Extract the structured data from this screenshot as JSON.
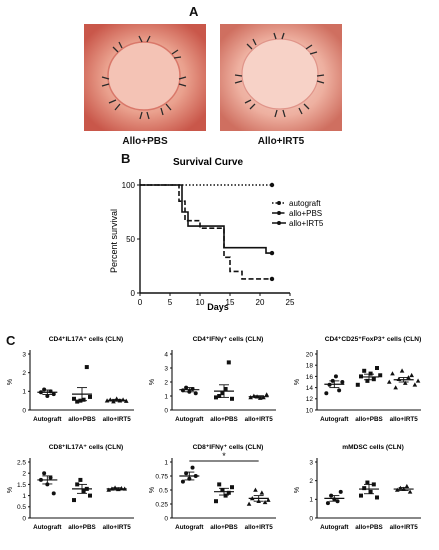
{
  "panel_letters": {
    "a": "A",
    "b": "B",
    "c": "C"
  },
  "photos": [
    {
      "caption": "Allo+PBS"
    },
    {
      "caption": "Allo+IRT5"
    }
  ],
  "chart_data": [
    {
      "type": "line",
      "title": "Survival Curve",
      "xlabel": "Days",
      "ylabel": "Percent survival",
      "xlim": [
        0,
        25
      ],
      "ylim": [
        0,
        100
      ],
      "xticks": [
        0,
        5,
        10,
        15,
        20,
        25
      ],
      "yticks": [
        0,
        50,
        100
      ],
      "legend_position": "right",
      "series": [
        {
          "name": "autograft",
          "style": "dotted",
          "x": [
            0,
            22
          ],
          "y": [
            100,
            100
          ],
          "end_marker": true
        },
        {
          "name": "allo+PBS",
          "style": "dashed",
          "x": [
            0,
            6.5,
            6.5,
            7.5,
            7.5,
            10,
            10,
            14,
            14,
            15,
            15,
            17,
            17,
            22
          ],
          "y": [
            100,
            100,
            85,
            85,
            67,
            67,
            60,
            60,
            33,
            33,
            20,
            20,
            13,
            13
          ],
          "end_marker": true
        },
        {
          "name": "allo+IRT5",
          "style": "solid",
          "x": [
            0,
            7,
            7,
            8,
            8,
            14,
            14,
            21,
            21,
            22
          ],
          "y": [
            100,
            100,
            75,
            75,
            62,
            62,
            42,
            42,
            37,
            37
          ],
          "end_marker": true
        }
      ]
    },
    {
      "type": "scatter",
      "title": "CD4⁺IL17A⁺ cells (CLN)",
      "ylabel": "%",
      "ylim": [
        0,
        3
      ],
      "yticks": [
        0,
        1,
        2,
        3
      ],
      "categories": [
        "Autograft",
        "allo+PBS",
        "allo+IRT5"
      ],
      "points": [
        [
          0.95,
          1.1,
          0.75,
          1.0,
          0.85
        ],
        [
          0.6,
          0.45,
          0.5,
          0.55,
          2.3,
          0.7
        ],
        [
          0.5,
          0.55,
          0.45,
          0.6,
          0.5,
          0.55,
          0.48
        ]
      ],
      "mean": [
        0.95,
        0.85,
        0.52
      ],
      "sem": [
        0.12,
        0.35,
        0.05
      ]
    },
    {
      "type": "scatter",
      "title": "CD4⁺IFNγ⁺ cells (CLN)",
      "ylabel": "%",
      "ylim": [
        0,
        4
      ],
      "yticks": [
        0,
        1,
        2,
        3,
        4
      ],
      "categories": [
        "Autograft",
        "allo+PBS",
        "allo+IRT5"
      ],
      "points": [
        [
          1.4,
          1.6,
          1.3,
          1.5,
          1.2
        ],
        [
          0.9,
          1.0,
          1.2,
          1.5,
          3.4,
          0.8
        ],
        [
          0.9,
          1.0,
          0.95,
          0.85,
          0.9,
          1.1
        ]
      ],
      "mean": [
        1.45,
        1.35,
        0.95
      ],
      "sem": [
        0.15,
        0.45,
        0.07
      ]
    },
    {
      "type": "scatter",
      "title": "CD4⁺CD25⁺FoxP3⁺ cells (CLN)",
      "ylabel": "%",
      "ylim": [
        10,
        20
      ],
      "yticks": [
        10,
        12,
        14,
        16,
        18,
        20
      ],
      "categories": [
        "Autograft",
        "allo+PBS",
        "allo+IRT5"
      ],
      "points": [
        [
          13.0,
          14.5,
          15.2,
          16.0,
          13.5,
          15.0
        ],
        [
          14.5,
          16.0,
          17.0,
          15.2,
          16.5,
          15.5,
          17.5,
          16.2
        ],
        [
          15.0,
          16.5,
          14.0,
          15.5,
          17.0,
          14.8,
          15.8,
          16.2,
          14.5,
          15.2
        ]
      ],
      "mean": [
        14.6,
        15.9,
        15.4
      ],
      "sem": [
        0.6,
        0.5,
        0.4
      ]
    },
    {
      "type": "scatter",
      "title": "CD8⁺IL17A⁺ cells (CLN)",
      "ylabel": "%",
      "ylim": [
        0,
        2.5
      ],
      "yticks": [
        0,
        0.5,
        1.0,
        1.5,
        2.0,
        2.5
      ],
      "categories": [
        "Autograft",
        "allo+PBS",
        "allo+IRT5"
      ],
      "points": [
        [
          1.7,
          2.0,
          1.5,
          1.8,
          1.1
        ],
        [
          0.8,
          1.5,
          1.7,
          1.2,
          1.3,
          1.0
        ],
        [
          1.25,
          1.3,
          1.35,
          1.28,
          1.32,
          1.3
        ]
      ],
      "mean": [
        1.7,
        1.3,
        1.3
      ],
      "sem": [
        0.18,
        0.2,
        0.05
      ]
    },
    {
      "type": "scatter",
      "title": "CD8⁺IFNγ⁺ cells (CLN)",
      "ylabel": "%",
      "ylim": [
        0,
        1.0
      ],
      "yticks": [
        0.0,
        0.25,
        0.5,
        0.75,
        1.0
      ],
      "categories": [
        "Autograft",
        "allo+PBS",
        "allo+IRT5"
      ],
      "points": [
        [
          0.65,
          0.8,
          0.7,
          0.9,
          0.75
        ],
        [
          0.3,
          0.6,
          0.5,
          0.4,
          0.45,
          0.55
        ],
        [
          0.25,
          0.35,
          0.5,
          0.3,
          0.45,
          0.28,
          0.32
        ]
      ],
      "mean": [
        0.75,
        0.47,
        0.35
      ],
      "sem": [
        0.07,
        0.06,
        0.05
      ],
      "significance": {
        "label": "*",
        "from": 0,
        "to": 2
      }
    },
    {
      "type": "scatter",
      "title": "mMDSC cells (CLN)",
      "ylabel": "%",
      "ylim": [
        0,
        3
      ],
      "yticks": [
        0,
        1,
        2,
        3
      ],
      "categories": [
        "Autograft",
        "allo+PBS",
        "allo+IRT5"
      ],
      "points": [
        [
          0.8,
          1.2,
          1.0,
          0.9,
          1.4
        ],
        [
          1.2,
          1.6,
          1.9,
          1.4,
          1.8,
          1.1
        ],
        [
          1.5,
          1.6,
          1.55,
          1.7,
          1.4
        ]
      ],
      "mean": [
        1.05,
        1.55,
        1.55
      ],
      "sem": [
        0.15,
        0.25,
        0.08
      ]
    }
  ],
  "colors": {
    "ink": "#111111",
    "photo_bg": "#e6a08c",
    "cornea": "#f3c1b4"
  }
}
